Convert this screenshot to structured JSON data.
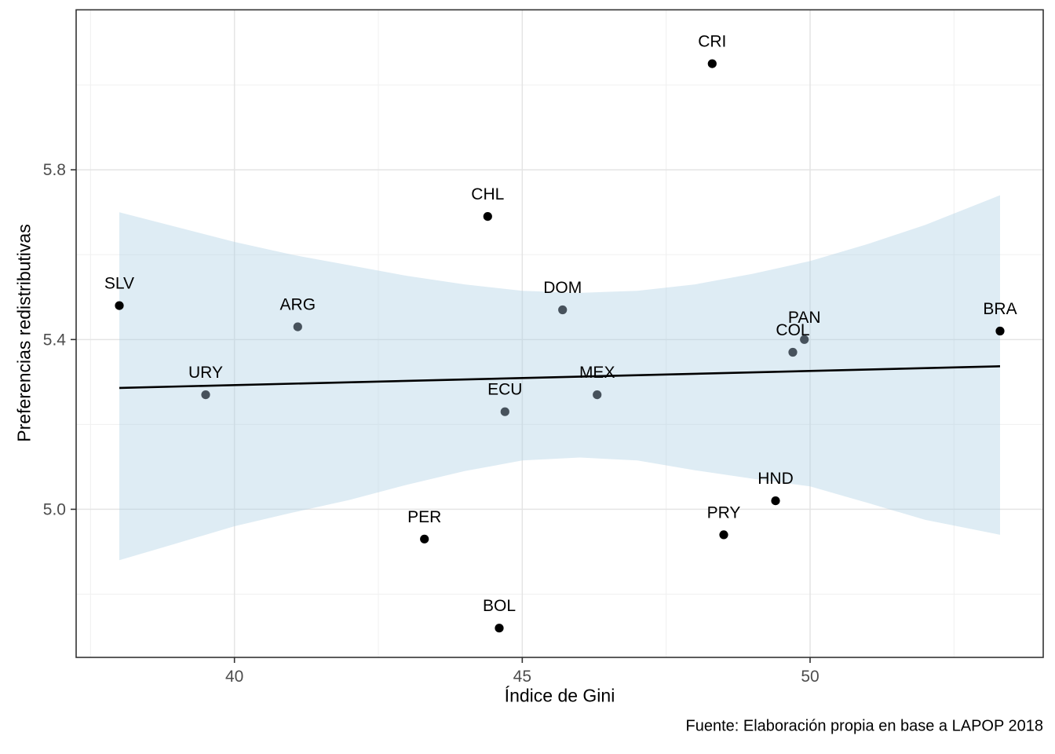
{
  "figure": {
    "type_hint": "ggplot-style scatter plot with linear trend and confidence band"
  },
  "chart_data": {
    "type": "scatter",
    "title": "",
    "xlabel": "Índice de Gini",
    "ylabel": "Preferencias redistributivas",
    "caption": "Fuente: Elaboración propia en base a LAPOP 2018",
    "xlim": [
      37.25,
      54.05
    ],
    "ylim": [
      4.651,
      6.177
    ],
    "grid": true,
    "legend_position": "none",
    "x_ticks": [
      {
        "v": 40,
        "label": "40"
      },
      {
        "v": 45,
        "label": "45"
      },
      {
        "v": 50,
        "label": "50"
      }
    ],
    "y_ticks": [
      {
        "v": 5.0,
        "label": "5.0"
      },
      {
        "v": 5.4,
        "label": "5.4"
      },
      {
        "v": 5.8,
        "label": "5.8"
      }
    ],
    "x_gridlines_minor": [
      37.5,
      42.5,
      47.5,
      52.5
    ],
    "y_gridlines_minor": [
      4.8,
      5.2,
      5.6,
      6.0
    ],
    "points": [
      {
        "label": "SLV",
        "x": 38.0,
        "y": 5.48,
        "on_band": false
      },
      {
        "label": "URY",
        "x": 39.5,
        "y": 5.27,
        "on_band": true
      },
      {
        "label": "ARG",
        "x": 41.1,
        "y": 5.43,
        "on_band": true
      },
      {
        "label": "PER",
        "x": 43.3,
        "y": 4.93,
        "on_band": false
      },
      {
        "label": "CHL",
        "x": 44.4,
        "y": 5.69,
        "on_band": false
      },
      {
        "label": "BOL",
        "x": 44.6,
        "y": 4.72,
        "on_band": false
      },
      {
        "label": "ECU",
        "x": 44.7,
        "y": 5.23,
        "on_band": true
      },
      {
        "label": "DOM",
        "x": 45.7,
        "y": 5.47,
        "on_band": true
      },
      {
        "label": "MEX",
        "x": 46.3,
        "y": 5.27,
        "on_band": true
      },
      {
        "label": "CRI",
        "x": 48.3,
        "y": 6.05,
        "on_band": false
      },
      {
        "label": "PRY",
        "x": 48.5,
        "y": 4.94,
        "on_band": false
      },
      {
        "label": "HND",
        "x": 49.4,
        "y": 5.02,
        "on_band": false
      },
      {
        "label": "COL",
        "x": 49.7,
        "y": 5.37,
        "on_band": true
      },
      {
        "label": "PAN",
        "x": 49.9,
        "y": 5.4,
        "on_band": true
      },
      {
        "label": "BRA",
        "x": 53.3,
        "y": 5.42,
        "on_band": false
      }
    ],
    "trend_line": {
      "x": [
        38.0,
        53.3
      ],
      "y": [
        5.286,
        5.337
      ]
    },
    "confidence_band": {
      "x": [
        38.0,
        39.0,
        40.0,
        41.0,
        42.0,
        43.0,
        44.0,
        45.0,
        46.0,
        47.0,
        48.0,
        49.0,
        50.0,
        51.0,
        52.0,
        53.3
      ],
      "upper": [
        5.7,
        5.665,
        5.63,
        5.6,
        5.575,
        5.55,
        5.53,
        5.515,
        5.51,
        5.515,
        5.53,
        5.555,
        5.585,
        5.625,
        5.67,
        5.74
      ],
      "lower": [
        4.88,
        4.92,
        4.96,
        4.992,
        5.022,
        5.058,
        5.09,
        5.115,
        5.122,
        5.115,
        5.092,
        5.072,
        5.054,
        5.015,
        4.975,
        4.94
      ]
    }
  },
  "theme": {
    "panel_bg": "#ffffff",
    "panel_border": "#333333",
    "grid_major": "#e4e4e4",
    "grid_minor": "#f0f0f0",
    "band_fill_rgba": "rgba(173,208,228,0.40)",
    "trend_color": "#000000",
    "point_color": "#000000",
    "point_on_band_color": "#47525c",
    "label_color": "#000000",
    "tick_color": "#333333",
    "tick_label_color": "#4d4d4d"
  }
}
